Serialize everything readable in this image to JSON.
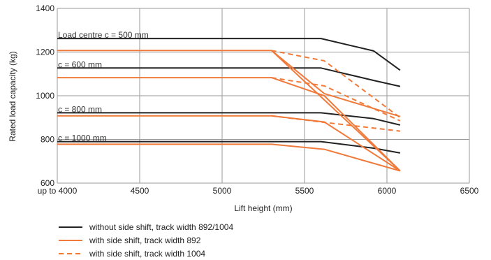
{
  "chart_data": {
    "type": "line",
    "title": "",
    "xlabel": "Lift height (mm)",
    "ylabel": "Rated load capacity (kg)",
    "xlim": [
      4000,
      6500
    ],
    "ylim": [
      600,
      1400
    ],
    "x_ticks": [
      {
        "value": 4000,
        "label": "up to 4000"
      },
      {
        "value": 4500,
        "label": "4500"
      },
      {
        "value": 5000,
        "label": "5000"
      },
      {
        "value": 5500,
        "label": "5500"
      },
      {
        "value": 6000,
        "label": "6000"
      },
      {
        "value": 6500,
        "label": "6500"
      }
    ],
    "y_ticks": [
      600,
      800,
      1000,
      1200,
      1400
    ],
    "grid": true,
    "annotations": [
      {
        "text": "Load centre c = 500 mm",
        "x": 4000,
        "y": 1262
      },
      {
        "text": "c = 600 mm",
        "x": 4000,
        "y": 1127
      },
      {
        "text": "c = 800 mm",
        "x": 4000,
        "y": 922
      },
      {
        "text": "c = 1000 mm",
        "x": 4000,
        "y": 790
      }
    ],
    "legend": {
      "position": "bottom-left",
      "entries": [
        {
          "label": "without side shift, track width 892/1004",
          "color": "#222222",
          "dash": "solid"
        },
        {
          "label": "with side shift, track width 892",
          "color": "#f07a3a",
          "dash": "solid"
        },
        {
          "label": "with side shift, track width 1004",
          "color": "#f07a3a",
          "dash": "dashed"
        }
      ]
    },
    "series": [
      {
        "group": "no-side-shift",
        "color": "#222222",
        "dash": "solid",
        "points": [
          [
            4000,
            1262
          ],
          [
            5600,
            1262
          ],
          [
            5920,
            1205
          ],
          [
            6080,
            1117
          ]
        ]
      },
      {
        "group": "no-side-shift",
        "color": "#222222",
        "dash": "solid",
        "points": [
          [
            4000,
            1127
          ],
          [
            5600,
            1127
          ],
          [
            5920,
            1070
          ],
          [
            6080,
            1043
          ]
        ]
      },
      {
        "group": "no-side-shift",
        "color": "#222222",
        "dash": "solid",
        "points": [
          [
            4000,
            922
          ],
          [
            5600,
            922
          ],
          [
            5920,
            895
          ],
          [
            6080,
            866
          ]
        ]
      },
      {
        "group": "no-side-shift",
        "color": "#222222",
        "dash": "solid",
        "points": [
          [
            4000,
            790
          ],
          [
            5600,
            790
          ],
          [
            5920,
            760
          ],
          [
            6080,
            738
          ]
        ]
      },
      {
        "group": "side-shift-892",
        "color": "#f07a3a",
        "dash": "solid",
        "points": [
          [
            4000,
            1207
          ],
          [
            5300,
            1207
          ],
          [
            6080,
            656
          ]
        ]
      },
      {
        "group": "side-shift-892",
        "color": "#f07a3a",
        "dash": "solid",
        "points": [
          [
            5300,
            1207
          ],
          [
            5620,
            1010
          ],
          [
            6080,
            905
          ]
        ]
      },
      {
        "group": "side-shift-892",
        "color": "#f07a3a",
        "dash": "solid",
        "points": [
          [
            4000,
            1083
          ],
          [
            5300,
            1083
          ],
          [
            5620,
            1000
          ],
          [
            6080,
            656
          ]
        ]
      },
      {
        "group": "side-shift-892",
        "color": "#f07a3a",
        "dash": "solid",
        "points": [
          [
            4000,
            908
          ],
          [
            5300,
            908
          ],
          [
            5620,
            880
          ],
          [
            6080,
            656
          ]
        ]
      },
      {
        "group": "side-shift-892",
        "color": "#f07a3a",
        "dash": "solid",
        "points": [
          [
            4000,
            778
          ],
          [
            5300,
            778
          ],
          [
            5620,
            755
          ],
          [
            6080,
            656
          ]
        ]
      },
      {
        "group": "side-shift-1004",
        "color": "#f07a3a",
        "dash": "dashed",
        "points": [
          [
            5300,
            1207
          ],
          [
            5620,
            1160
          ],
          [
            6080,
            900
          ]
        ]
      },
      {
        "group": "side-shift-1004",
        "color": "#f07a3a",
        "dash": "dashed",
        "points": [
          [
            5300,
            1083
          ],
          [
            5620,
            1045
          ],
          [
            6080,
            885
          ]
        ]
      },
      {
        "group": "side-shift-1004",
        "color": "#f07a3a",
        "dash": "dashed",
        "points": [
          [
            5300,
            908
          ],
          [
            5620,
            878
          ],
          [
            6080,
            838
          ]
        ]
      }
    ]
  }
}
